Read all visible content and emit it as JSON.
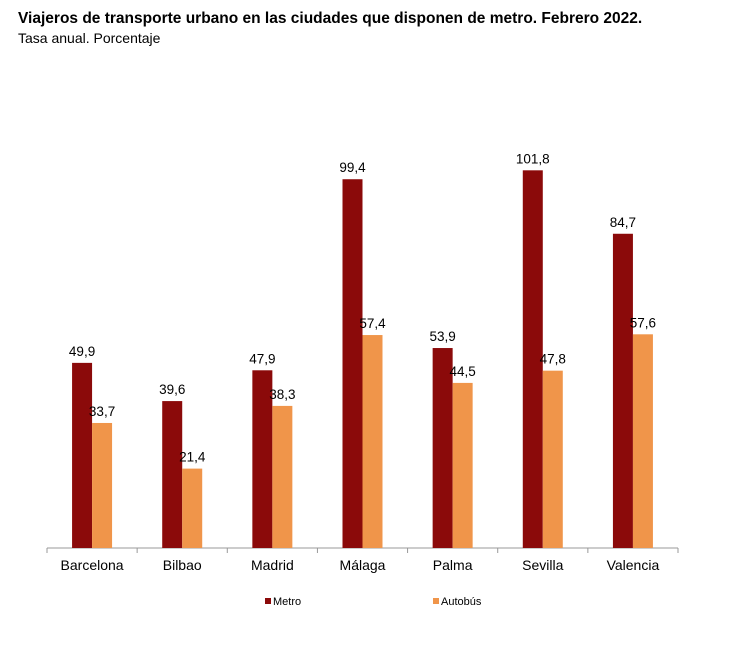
{
  "title": "Viajeros de transporte urbano en las ciudades que disponen de metro. Febrero 2022.",
  "subtitle": "Tasa anual. Porcentaje",
  "chart_data": {
    "type": "bar",
    "title": "Viajeros de transporte urbano en las ciudades que disponen de metro. Febrero 2022.",
    "subtitle": "Tasa anual. Porcentaje",
    "categories": [
      "Barcelona",
      "Bilbao",
      "Madrid",
      "Málaga",
      "Palma",
      "Sevilla",
      "Valencia"
    ],
    "series": [
      {
        "name": "Metro",
        "color": "#8B0A0A",
        "values": [
          49.9,
          39.6,
          47.9,
          99.4,
          53.9,
          101.8,
          84.7
        ],
        "labels": [
          "49,9",
          "39,6",
          "47,9",
          "99,4",
          "53,9",
          "101,8",
          "84,7"
        ]
      },
      {
        "name": "Autobús",
        "color": "#F0954A",
        "values": [
          33.7,
          21.4,
          38.3,
          57.4,
          44.5,
          47.8,
          57.6
        ],
        "labels": [
          "33,7",
          "21,4",
          "38,3",
          "57,4",
          "44,5",
          "47,8",
          "57,6"
        ]
      }
    ],
    "ylim": [
      0,
      105
    ],
    "grid": false,
    "legend": "bottom",
    "xlabel": "",
    "ylabel": ""
  }
}
